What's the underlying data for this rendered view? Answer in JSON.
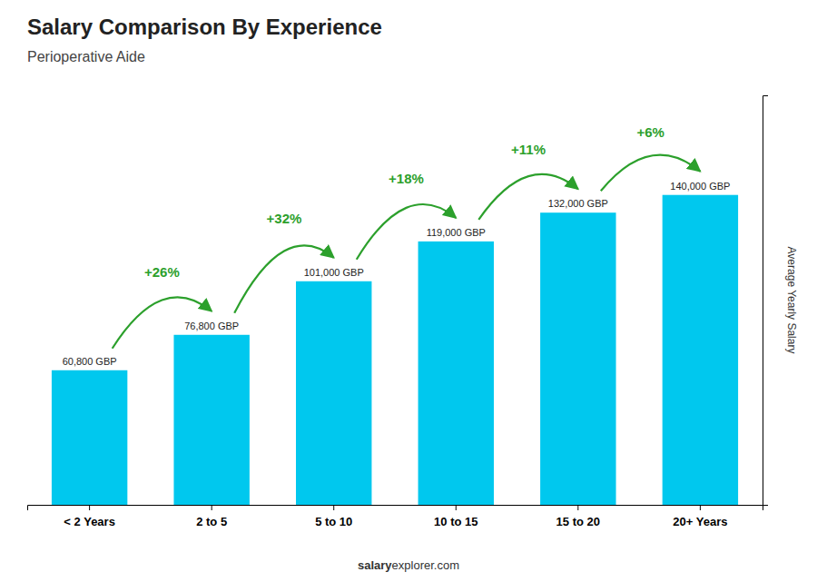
{
  "chart_data": {
    "type": "bar",
    "title": "Salary Comparison By Experience",
    "subtitle": "Perioperative Aide",
    "categories": [
      "< 2 Years",
      "2 to 5",
      "5 to 10",
      "10 to 15",
      "15 to 20",
      "20+ Years"
    ],
    "values": [
      60800,
      76800,
      101000,
      119000,
      132000,
      140000
    ],
    "value_labels": [
      "60,800 GBP",
      "76,800 GBP",
      "101,000 GBP",
      "119,000 GBP",
      "132,000 GBP",
      "140,000 GBP"
    ],
    "data_labels": true,
    "color": "#00c8ee",
    "ylabel": "Average Yearly Salary",
    "ylim": [
      0,
      185000
    ],
    "tick_labels": "x",
    "grid": false,
    "annotations": [
      "+26%",
      "+32%",
      "+18%",
      "+11%",
      "+6%"
    ],
    "footer": [
      "salary",
      "explorer.com"
    ]
  }
}
